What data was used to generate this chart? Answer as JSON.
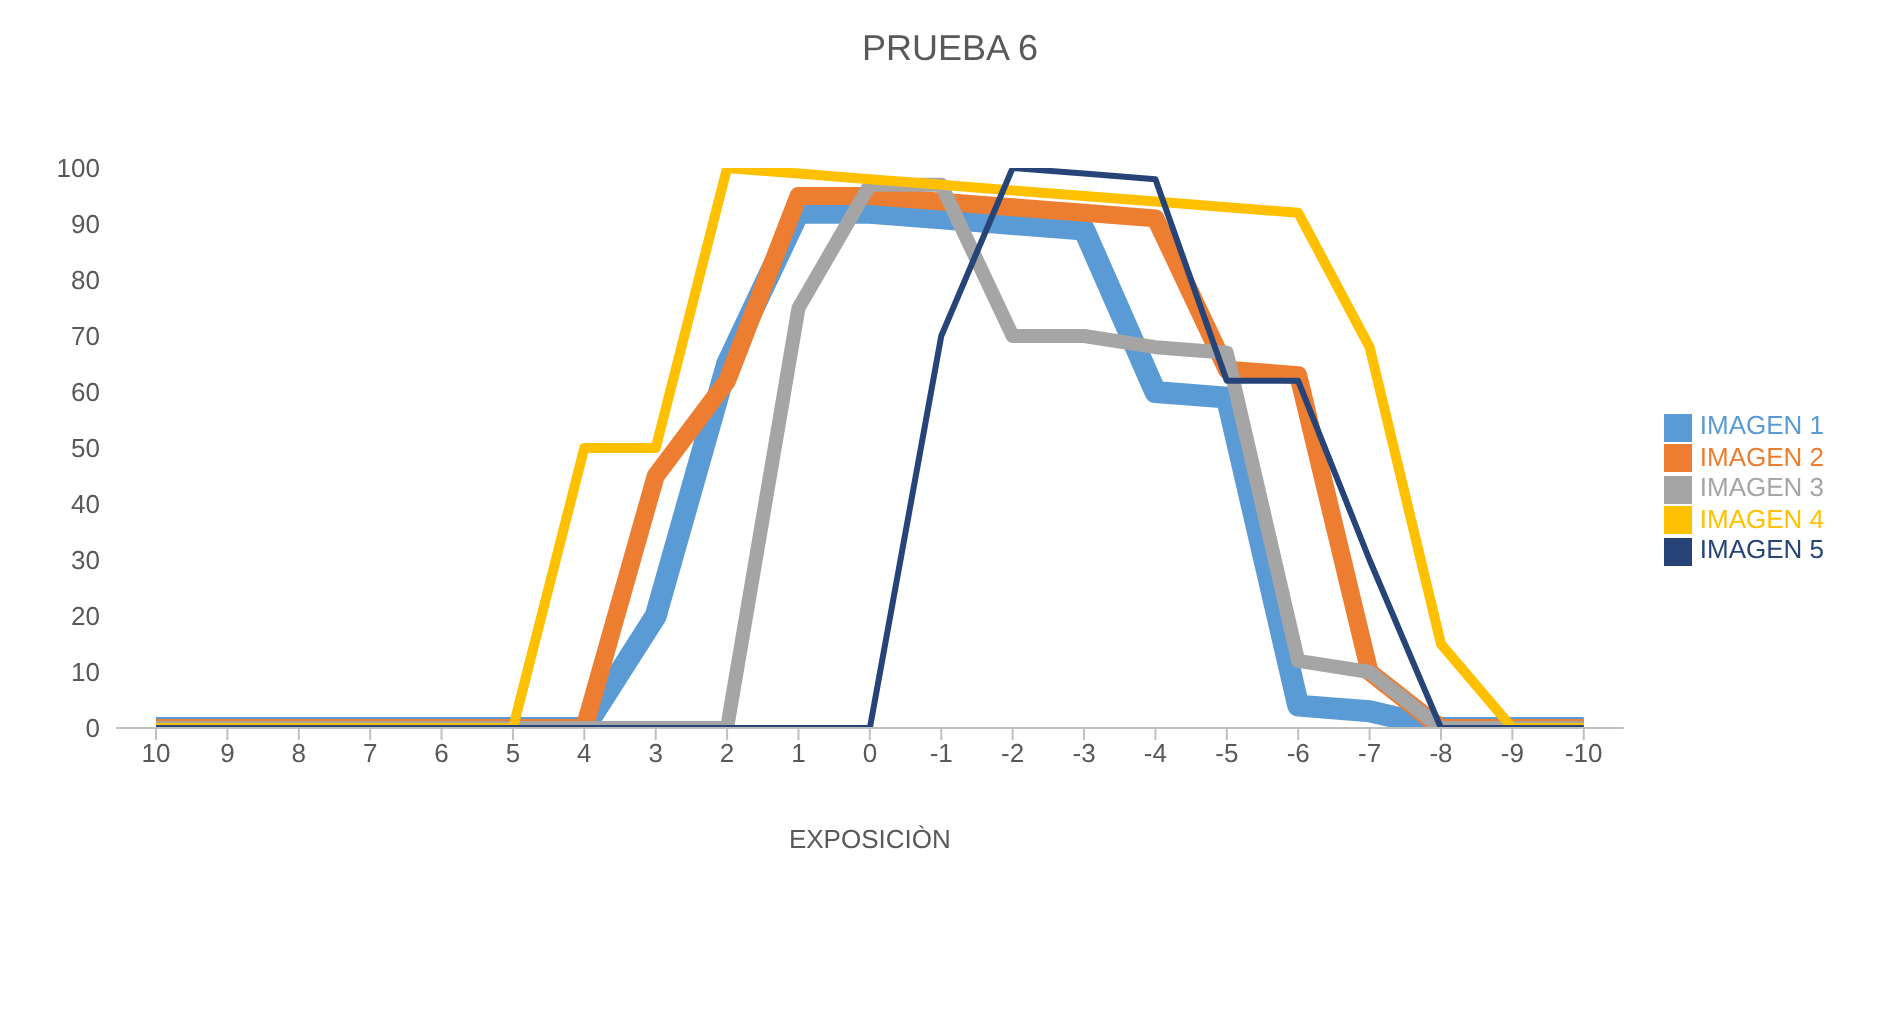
{
  "chart_data": {
    "type": "line",
    "title": "PRUEBA 6",
    "xlabel": "EXPOSICIÒN",
    "categories": [
      "10",
      "9",
      "8",
      "7",
      "6",
      "5",
      "4",
      "3",
      "2",
      "1",
      "0",
      "-1",
      "-2",
      "-3",
      "-4",
      "-5",
      "-6",
      "-7",
      "-8",
      "-9",
      "-10"
    ],
    "series": [
      {
        "name": "IMAGEN 1",
        "color": "#5b9bd5",
        "values": [
          0,
          0,
          0,
          0,
          0,
          0,
          0,
          20,
          65,
          92,
          92,
          91,
          90,
          89,
          60,
          59,
          4,
          3,
          0,
          0,
          0
        ]
      },
      {
        "name": "IMAGEN 2",
        "color": "#ed7d31",
        "values": [
          0,
          0,
          0,
          0,
          0,
          0,
          0,
          45,
          62,
          95,
          95,
          94,
          93,
          92,
          91,
          64,
          63,
          10,
          0,
          0,
          0
        ]
      },
      {
        "name": "IMAGEN 3",
        "color": "#a5a5a5",
        "values": [
          0,
          0,
          0,
          0,
          0,
          0,
          0,
          0,
          0,
          75,
          97,
          97,
          70,
          70,
          68,
          67,
          12,
          10,
          0,
          0,
          0
        ]
      },
      {
        "name": "IMAGEN 4",
        "color": "#ffc000",
        "values": [
          0,
          0,
          0,
          0,
          0,
          0,
          50,
          50,
          100,
          99,
          98,
          97,
          96,
          95,
          94,
          93,
          92,
          68,
          15,
          0,
          0
        ]
      },
      {
        "name": "IMAGEN 5",
        "color": "#264478",
        "values": [
          0,
          0,
          0,
          0,
          0,
          0,
          0,
          0,
          0,
          0,
          0,
          70,
          100,
          99,
          98,
          62,
          62,
          30,
          0,
          0,
          0
        ]
      }
    ],
    "ylim": [
      0,
      100
    ],
    "yticks": [
      0,
      10,
      20,
      30,
      40,
      50,
      60,
      70,
      80,
      90,
      100
    ],
    "grid": false,
    "legend": "right",
    "marker": "none",
    "line_style": "solid"
  }
}
